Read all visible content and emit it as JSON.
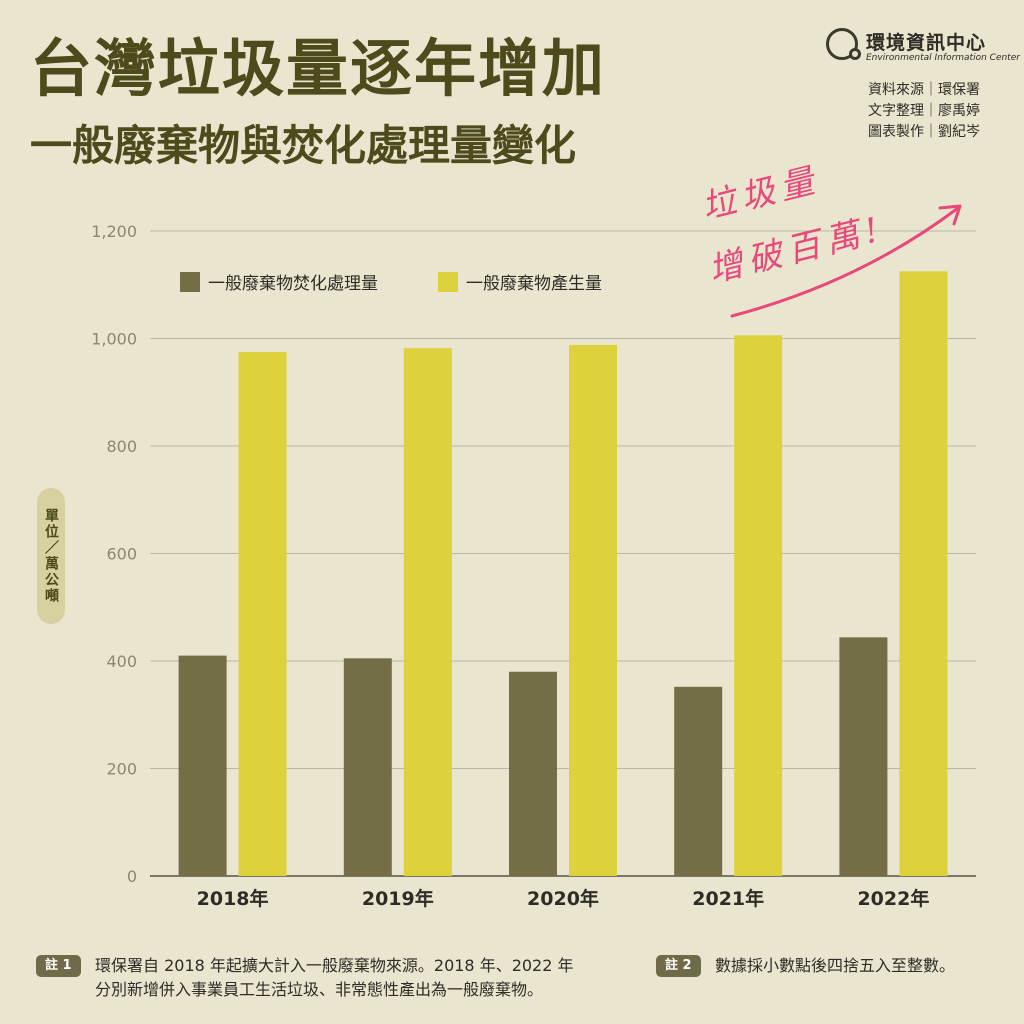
{
  "title": "台灣垃圾量逐年增加",
  "subtitle": "一般廢棄物與焚化處理量變化",
  "org": {
    "name": "環境資訊中心",
    "name_en": "Environmental Information Center",
    "logo_icon": "magnifier-globe-icon"
  },
  "credits": [
    {
      "role": "資料來源",
      "name": "環保署"
    },
    {
      "role": "文字整理",
      "name": "廖禹婷"
    },
    {
      "role": "圖表製作",
      "name": "劉紀岑"
    }
  ],
  "unit_label": "單位／萬公噸",
  "annotation": {
    "line1": "垃圾量",
    "line2": "增破百萬!",
    "color": "#e8487a"
  },
  "notes": [
    {
      "badge": "註 1",
      "text_line1": "環保署自 2018 年起擴大計入一般廢棄物來源。2018 年、2022 年",
      "text_line2": "分別新增併入事業員工生活垃圾、非常態性產出為一般廢棄物。"
    },
    {
      "badge": "註 2",
      "text_line1": "數據採小數點後四捨五入至整數。"
    }
  ],
  "chart_data": {
    "type": "bar",
    "categories": [
      "2018年",
      "2019年",
      "2020年",
      "2021年",
      "2022年"
    ],
    "series": [
      {
        "name": "一般廢棄物焚化處理量",
        "color": "#746e47",
        "values": [
          410,
          405,
          380,
          352,
          444
        ]
      },
      {
        "name": "一般廢棄物產生量",
        "color": "#ddd13c",
        "values": [
          975,
          982,
          988,
          1006,
          1125
        ]
      }
    ],
    "y_ticks": [
      "0",
      "200",
      "400",
      "600",
      "800",
      "1,000",
      "1,200"
    ],
    "ylim": [
      0,
      1200
    ],
    "grid": true,
    "legend_position": "top-left"
  }
}
